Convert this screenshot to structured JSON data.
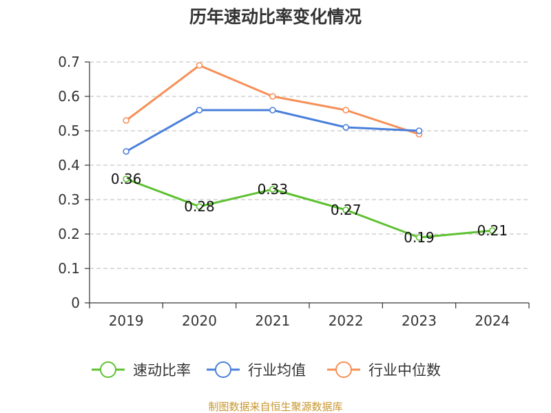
{
  "chart_data": {
    "type": "line",
    "title": "历年速动比率变化情况",
    "categories": [
      "2019",
      "2020",
      "2021",
      "2022",
      "2023",
      "2024"
    ],
    "ylim": [
      0,
      0.7
    ],
    "yticks": [
      "0",
      "0.1",
      "0.2",
      "0.3",
      "0.4",
      "0.5",
      "0.6",
      "0.7"
    ],
    "grid": true,
    "legend_position": "bottom",
    "series": [
      {
        "name": "速动比率",
        "color": "#5cc12f",
        "values": [
          0.36,
          0.28,
          0.33,
          0.27,
          0.19,
          0.21
        ],
        "labels": [
          "0.36",
          "0.28",
          "0.33",
          "0.27",
          "0.19",
          "0.21"
        ]
      },
      {
        "name": "行业均值",
        "color": "#4a7fdb",
        "values": [
          0.44,
          0.56,
          0.56,
          0.51,
          0.5,
          null
        ]
      },
      {
        "name": "行业中位数",
        "color": "#f78f57",
        "values": [
          0.53,
          0.69,
          0.6,
          0.56,
          0.49,
          null
        ]
      }
    ]
  },
  "source": {
    "text": "制图数据来自恒生聚源数据库",
    "color": "#c8962e"
  }
}
